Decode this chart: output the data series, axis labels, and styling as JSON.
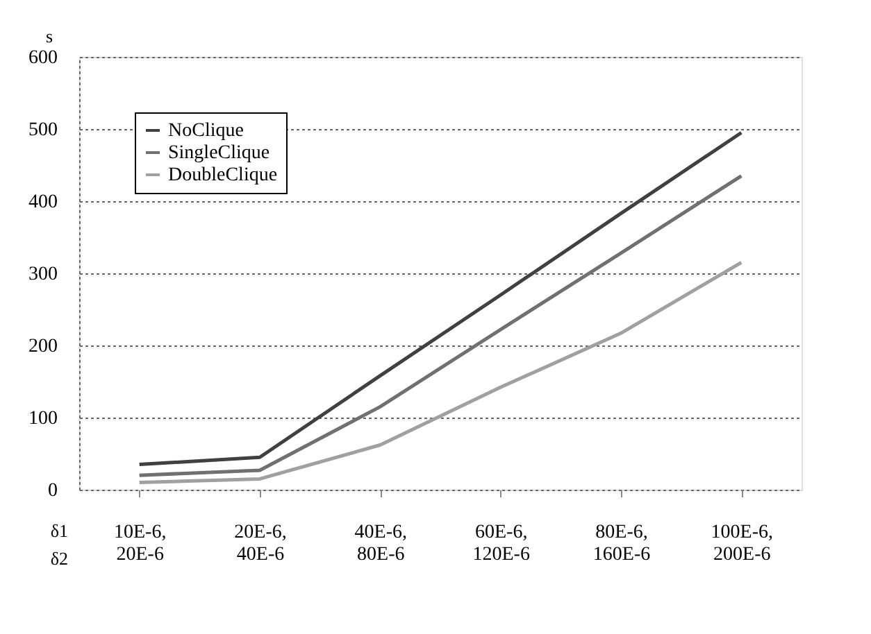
{
  "chart_data": {
    "type": "line",
    "ylabel": "s",
    "categories": [
      "10E-6,\n20E-6",
      "20E-6,\n40E-6",
      "40E-6,\n80E-6",
      "60E-6,\n120E-6",
      "80E-6,\n160E-6",
      "100E-6,\n200E-6"
    ],
    "series": [
      {
        "name": "NoClique",
        "color": "#404040",
        "values": [
          35,
          45,
          158,
          270,
          383,
          495
        ]
      },
      {
        "name": "SingleClique",
        "color": "#707070",
        "values": [
          20,
          27,
          115,
          222,
          328,
          435
        ]
      },
      {
        "name": "DoubleClique",
        "color": "#a0a0a0",
        "values": [
          10,
          15,
          62,
          142,
          217,
          315
        ]
      }
    ],
    "ylim": [
      0,
      600
    ],
    "yticks": [
      0,
      100,
      200,
      300,
      400,
      500,
      600
    ],
    "annotations": [
      "δ1",
      "δ2"
    ],
    "grid": "y",
    "legend": "top left",
    "marker": "none",
    "line_style": "solid"
  }
}
